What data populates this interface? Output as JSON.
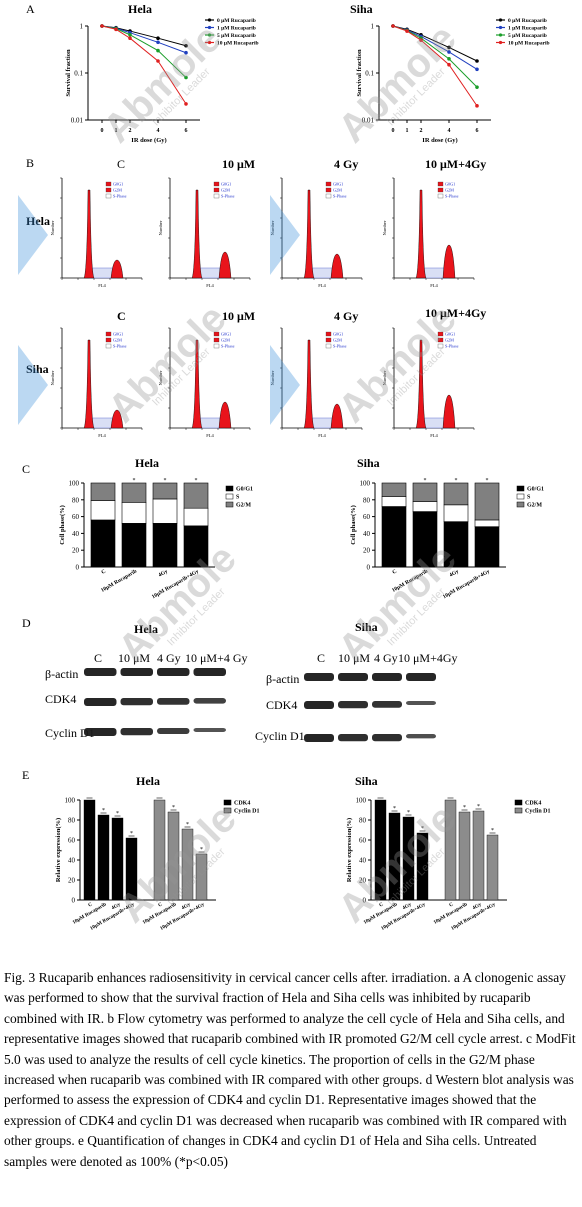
{
  "panels": {
    "a": {
      "letter": "A",
      "left_title": "Hela",
      "right_title": "Siha",
      "ylabel": "Survival fraction",
      "xlabel": "IR dose (Gy)"
    },
    "b": {
      "letter": "B",
      "cols": [
        "C",
        "10 μM",
        "4 Gy",
        "10 μM+4Gy"
      ],
      "row1": "Hela",
      "row2": "Siha",
      "legend": [
        "G0G1",
        "G2M",
        "S-Phase"
      ],
      "xlab": "FL4",
      "ylab": "Number"
    },
    "c": {
      "letter": "C",
      "left_title": "Hela",
      "right_title": "Siha",
      "ylabel": "Cell phase(%)",
      "legend": [
        "G0/G1",
        "S",
        "G2/M"
      ]
    },
    "d": {
      "letter": "D",
      "left_title": "Hela",
      "right_title": "Siha",
      "cols": [
        "C",
        "10 μM",
        "4 Gy",
        "10 μM+4 Gy"
      ],
      "cols_right": [
        "C",
        "10 μM",
        "4 Gy",
        "10 μM+4Gy"
      ],
      "rows": [
        "β-actin",
        "CDK4",
        "Cyclin D1"
      ]
    },
    "e": {
      "letter": "E",
      "left_title": "Hela",
      "right_title": "Siha",
      "ylabel": "Relative expression(%)",
      "legend": [
        "CDK4",
        "Cyclin D1"
      ]
    }
  },
  "chart_data": [
    {
      "type": "line",
      "title": "Hela",
      "xlabel": "IR dose (Gy)",
      "ylabel": "Survival fraction",
      "x": [
        0,
        1,
        2,
        4,
        6
      ],
      "yscale": "log",
      "ylim": [
        0.01,
        1
      ],
      "yticks": [
        "0.01",
        "0.1",
        "1"
      ],
      "series": [
        {
          "name": "0 μM Rucaparib",
          "values": [
            1,
            0.92,
            0.78,
            0.55,
            0.38
          ],
          "color": "#000000"
        },
        {
          "name": "1 μM Rucaparib",
          "values": [
            1,
            0.9,
            0.72,
            0.45,
            0.27
          ],
          "color": "#1f3fbf"
        },
        {
          "name": "5 μM Rucaparib",
          "values": [
            1,
            0.88,
            0.65,
            0.3,
            0.08
          ],
          "color": "#1a9e2a"
        },
        {
          "name": "10 μM Rucaparib",
          "values": [
            1,
            0.85,
            0.55,
            0.18,
            0.022
          ],
          "color": "#e02020"
        }
      ]
    },
    {
      "type": "line",
      "title": "Siha",
      "xlabel": "IR dose (Gy)",
      "ylabel": "Survival fraction",
      "x": [
        0,
        1,
        2,
        4,
        6
      ],
      "yscale": "log",
      "ylim": [
        0.01,
        1
      ],
      "yticks": [
        "0.01",
        "0.1",
        "1"
      ],
      "series": [
        {
          "name": "0 μM Rucaparib",
          "values": [
            1,
            0.85,
            0.65,
            0.35,
            0.18
          ],
          "color": "#000000"
        },
        {
          "name": "1 μM Rucaparib",
          "values": [
            1,
            0.82,
            0.6,
            0.28,
            0.12
          ],
          "color": "#1f3fbf"
        },
        {
          "name": "5 μM Rucaparib",
          "values": [
            1,
            0.8,
            0.55,
            0.2,
            0.05
          ],
          "color": "#1a9e2a"
        },
        {
          "name": "10 μM Rucaparib",
          "values": [
            1,
            0.78,
            0.5,
            0.15,
            0.02
          ],
          "color": "#e02020"
        }
      ]
    },
    {
      "type": "bar",
      "title": "Hela",
      "stacked": true,
      "ylabel": "Cell phase(%)",
      "ylim": [
        0,
        100
      ],
      "yticks": [
        "0",
        "20",
        "40",
        "60",
        "80",
        "100"
      ],
      "categories": [
        "C",
        "10μM Rucaparib",
        "4Gy",
        "10μM Rucaparib+4Gy"
      ],
      "series": [
        {
          "name": "G0/G1",
          "values": [
            56,
            52,
            52,
            49
          ],
          "color": "#000000"
        },
        {
          "name": "S",
          "values": [
            23,
            25,
            29,
            21
          ],
          "color": "#ffffff"
        },
        {
          "name": "G2/M",
          "values": [
            21,
            23,
            19,
            30
          ],
          "color": "#808080"
        }
      ]
    },
    {
      "type": "bar",
      "title": "Siha",
      "stacked": true,
      "ylabel": "Cell phase(%)",
      "ylim": [
        0,
        100
      ],
      "yticks": [
        "0",
        "20",
        "40",
        "60",
        "80",
        "100"
      ],
      "categories": [
        "C",
        "10μM Rucaparib",
        "4Gy",
        "10μM Rucaparib+4Gy"
      ],
      "series": [
        {
          "name": "G0/G1",
          "values": [
            72,
            66,
            54,
            48
          ],
          "color": "#000000"
        },
        {
          "name": "S",
          "values": [
            12,
            12,
            20,
            8
          ],
          "color": "#ffffff"
        },
        {
          "name": "G2/M",
          "values": [
            16,
            22,
            26,
            44
          ],
          "color": "#808080"
        }
      ]
    },
    {
      "type": "bar",
      "title": "Hela",
      "ylabel": "Relative expression(%)",
      "ylim": [
        0,
        100
      ],
      "yticks": [
        "0",
        "20",
        "40",
        "60",
        "80",
        "100"
      ],
      "categories": [
        "C",
        "10μM Rucaparib",
        "4Gy",
        "10μM Rucaparib+4Gy"
      ],
      "series": [
        {
          "name": "CDK4",
          "values": [
            100,
            85,
            82,
            62
          ],
          "color": "#000000"
        },
        {
          "name": "Cyclin D1",
          "values": [
            100,
            88,
            71,
            46
          ],
          "color": "#8c8c8c"
        }
      ]
    },
    {
      "type": "bar",
      "title": "Siha",
      "ylabel": "Relative expression(%)",
      "ylim": [
        0,
        100
      ],
      "yticks": [
        "0",
        "20",
        "40",
        "60",
        "80",
        "100"
      ],
      "categories": [
        "C",
        "10μM Rucaparib",
        "4Gy",
        "10μM Rucaparib+4Gy"
      ],
      "series": [
        {
          "name": "CDK4",
          "values": [
            100,
            87,
            83,
            67
          ],
          "color": "#000000"
        },
        {
          "name": "Cyclin D1",
          "values": [
            100,
            88,
            89,
            65
          ],
          "color": "#8c8c8c"
        }
      ]
    }
  ],
  "caption": "Fig. 3 Rucaparib enhances radiosensitivity in cervical cancer cells after. irradiation. a A clonogenic assay was performed to show that the survival fraction of Hela and Siha cells was inhibited by rucaparib combined with IR. b Flow cytometry was performed to analyze the cell cycle of Hela and Siha cells, and representative images showed that rucaparib combined with IR promoted G2/M cell cycle arrest. c ModFit 5.0 was used to analyze the results of cell cycle kinetics. The proportion of cells in the G2/M phase increased when rucaparib was combined with IR compared with other groups. d Western blot analysis was performed to assess the expression of CDK4 and cyclin D1. Representative images showed that the expression of CDK4 and cyclin D1 was decreased when rucaparib was combined with IR compared with other groups. e Quantification of changes in CDK4 and cyclin D1 of Hela and Siha cells. Untreated samples were denoted as 100% (*p<0.05)",
  "watermark": {
    "brand": "Abmole",
    "sub": "Inhibitor Leader"
  }
}
